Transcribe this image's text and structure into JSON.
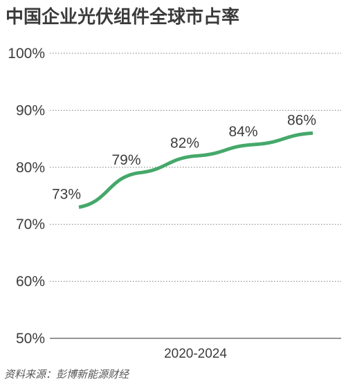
{
  "chart_data": {
    "type": "line",
    "title": "中国企业光伏组件全球市占率",
    "source": "资料来源：彭博新能源财经",
    "xlabel": "2020-2024",
    "ylabel": "",
    "ylim": [
      50,
      100
    ],
    "yticks": [
      50,
      60,
      70,
      80,
      90,
      100
    ],
    "ytick_labels": [
      "50%",
      "60%",
      "70%",
      "80%",
      "90%",
      "100%"
    ],
    "x": [
      2020,
      2021,
      2022,
      2023,
      2024
    ],
    "series": [
      {
        "values": [
          73,
          79,
          82,
          84,
          86
        ],
        "labels": [
          "73%",
          "79%",
          "82%",
          "84%",
          "86%"
        ],
        "color": "#45a86a"
      }
    ],
    "grid": "horizontal-dotted",
    "legend": "none"
  }
}
